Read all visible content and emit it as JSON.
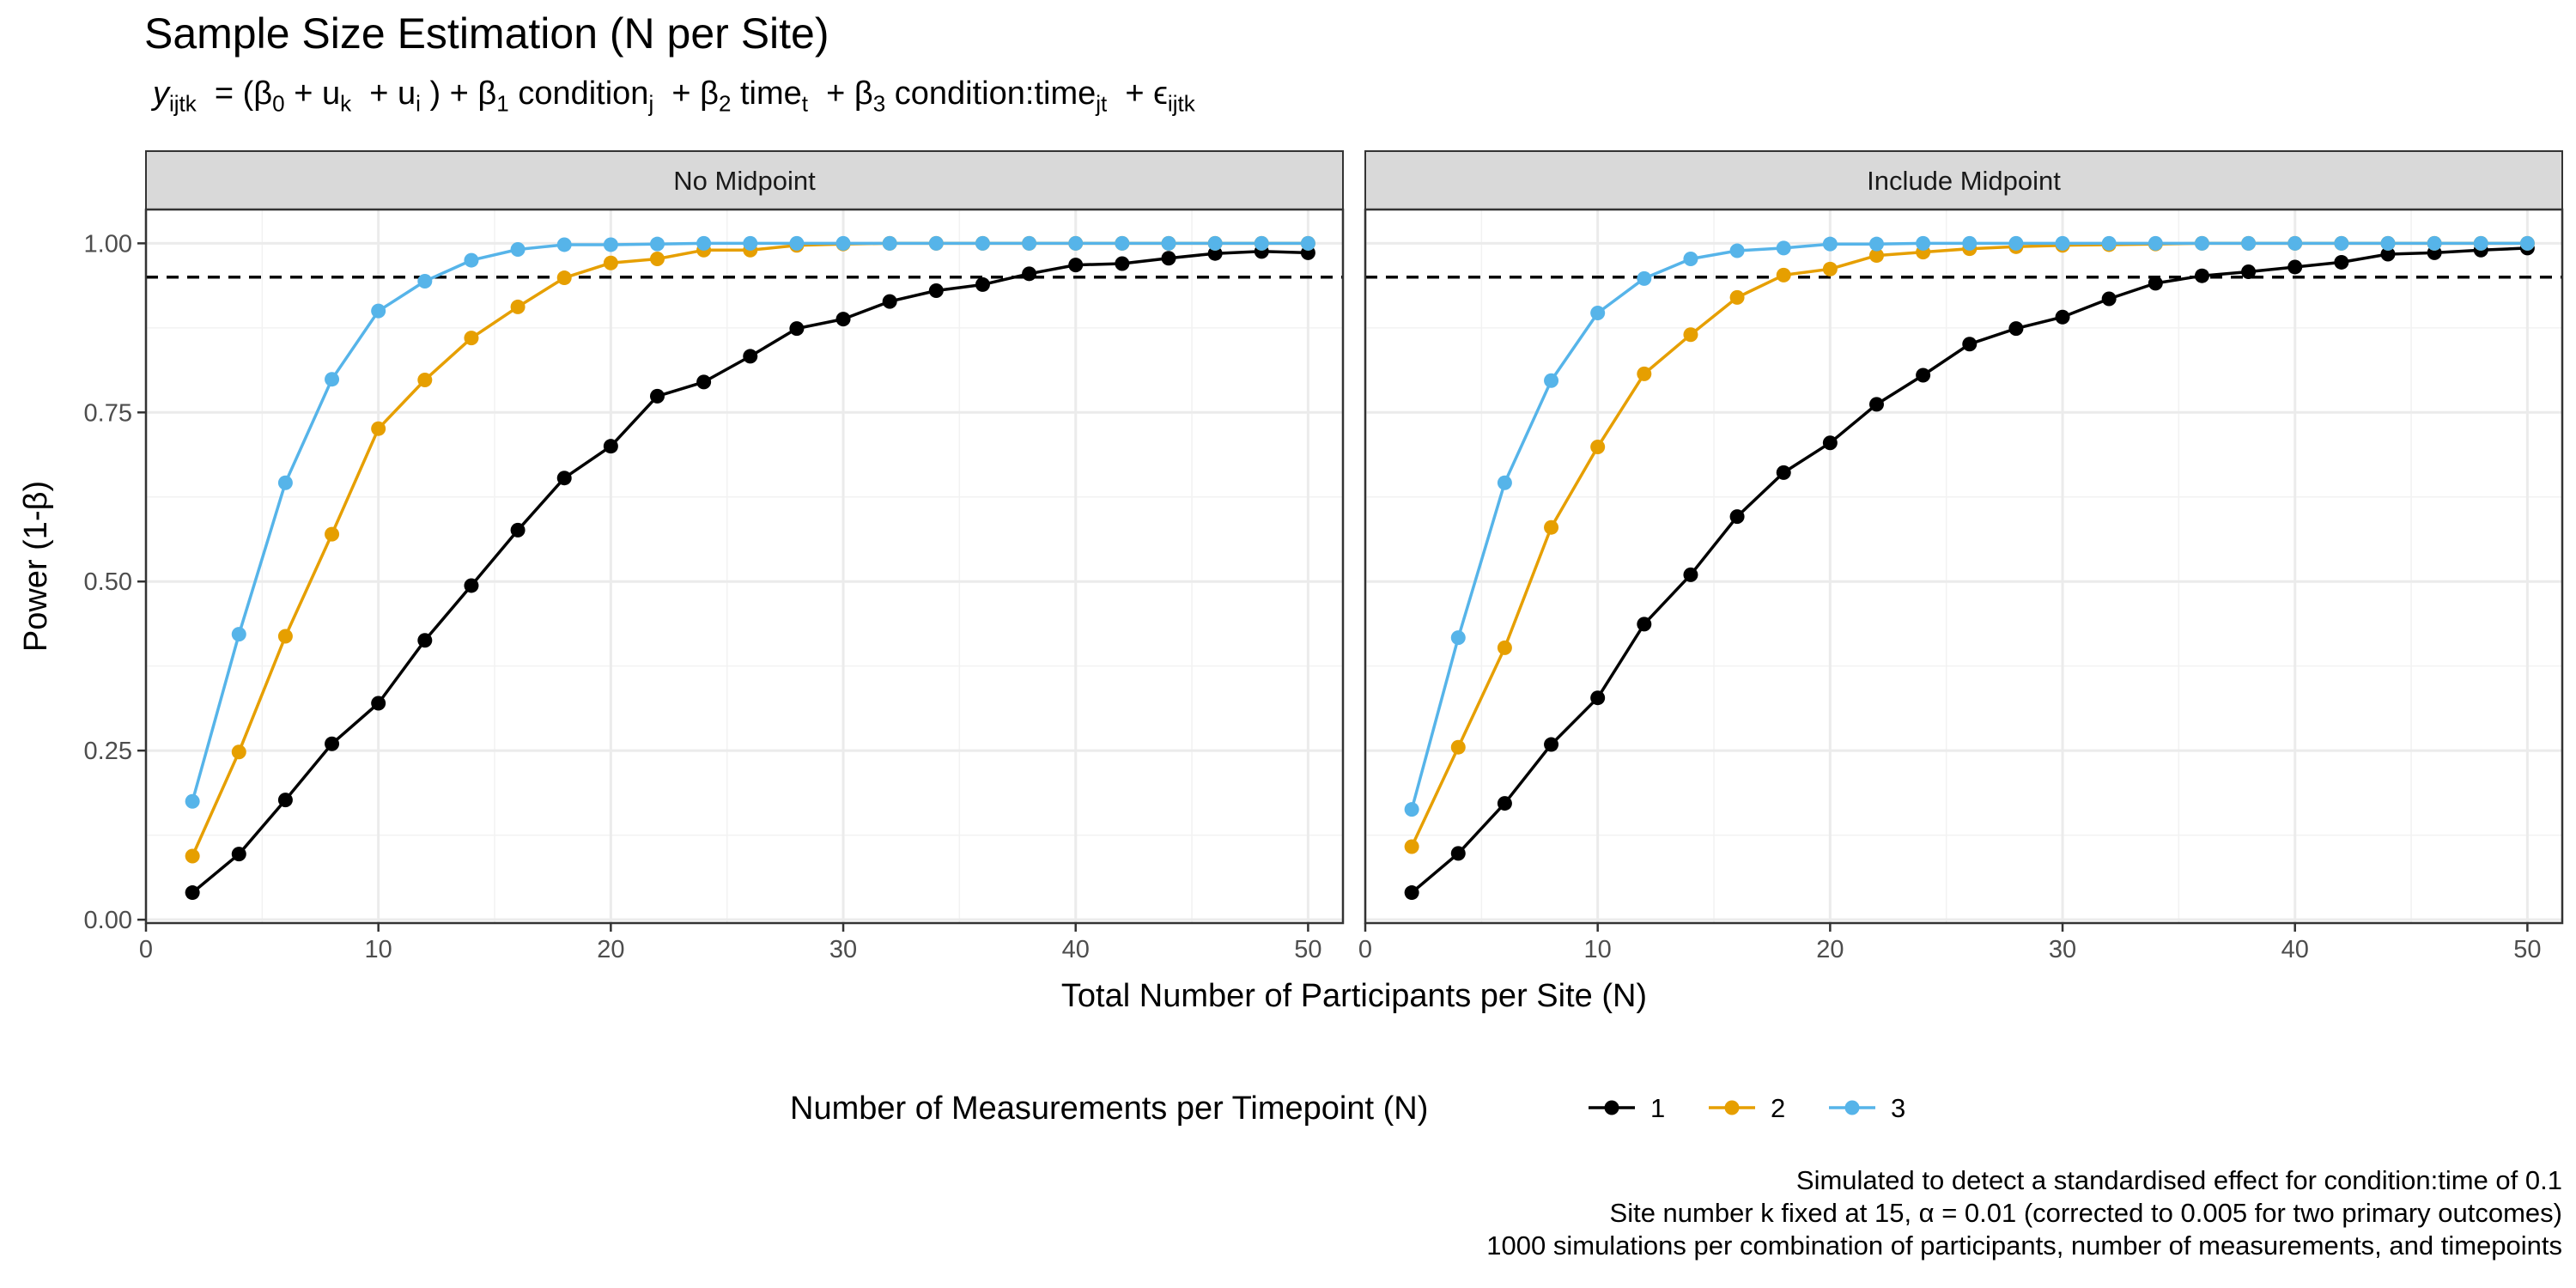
{
  "chart_data": {
    "type": "line",
    "title": "Sample Size Estimation (N per Site)",
    "subtitle": {
      "y": "y",
      "y_sub": "ijtk",
      "p1": "= (β",
      "b0_sub": "0",
      "p2": "+ u",
      "uk_sub": "k",
      "p3": "+ u",
      "ui_sub": "i",
      "p4": ") + β",
      "b1_sub": "1",
      "p5": "condition",
      "cond_sub": "j",
      "p6": "+ β",
      "b2_sub": "2",
      "p7": "time",
      "time_sub": "t",
      "p8": "+ β",
      "b3_sub": "3",
      "p9": "condition:time",
      "ct_sub": "jt",
      "p10": "+ ϵ",
      "eps_sub": "ijtk"
    },
    "xlabel": "Total Number of Participants per Site (N)",
    "ylabel": "Power (1-β)",
    "xlim": [
      0,
      51.5
    ],
    "ylim": [
      -0.005,
      1.05
    ],
    "x_ticks": [
      0,
      10,
      20,
      30,
      40,
      50
    ],
    "x_tick_labels": [
      "0",
      "10",
      "20",
      "30",
      "40",
      "50"
    ],
    "y_ticks": [
      0,
      0.25,
      0.5,
      0.75,
      1.0
    ],
    "y_tick_labels": [
      "0.00",
      "0.25",
      "0.50",
      "0.75",
      "1.00"
    ],
    "reference_line": 0.95,
    "grid": true,
    "legend_title": "Number of Measurements per Timepoint (N)",
    "legend_position": "bottom",
    "caption": [
      "Simulated to detect a standardised effect for condition:time of 0.1",
      "Site number k fixed at 15, α = 0.01 (corrected to 0.005 for two primary outcomes)",
      "1000 simulations per combination of participants, number of measurements, and timepoints"
    ],
    "x": [
      2,
      4,
      6,
      8,
      10,
      12,
      14,
      16,
      18,
      20,
      22,
      24,
      26,
      28,
      30,
      32,
      34,
      36,
      38,
      40,
      42,
      44,
      46,
      48,
      50
    ],
    "panels": [
      {
        "label": "No Midpoint",
        "series": [
          {
            "name": "1",
            "color": "#000000",
            "values": [
              0.04,
              0.097,
              0.177,
              0.26,
              0.32,
              0.413,
              0.494,
              0.576,
              0.653,
              0.7,
              0.774,
              0.795,
              0.833,
              0.874,
              0.888,
              0.914,
              0.93,
              0.939,
              0.955,
              0.968,
              0.97,
              0.978,
              0.985,
              0.988,
              0.986
            ]
          },
          {
            "name": "2",
            "color": "#E69F00",
            "values": [
              0.094,
              0.248,
              0.419,
              0.57,
              0.726,
              0.798,
              0.86,
              0.906,
              0.949,
              0.971,
              0.977,
              0.99,
              0.99,
              0.997,
              0.999,
              1.0,
              1.0,
              1.0,
              1.0,
              1.0,
              1.0,
              1.0,
              1.0,
              1.0,
              1.0
            ]
          },
          {
            "name": "3",
            "color": "#56B4E9",
            "values": [
              0.175,
              0.422,
              0.646,
              0.799,
              0.9,
              0.944,
              0.975,
              0.991,
              0.998,
              0.998,
              0.999,
              1.0,
              1.0,
              1.0,
              1.0,
              1.0,
              1.0,
              1.0,
              1.0,
              1.0,
              1.0,
              1.0,
              1.0,
              1.0,
              1.0
            ]
          }
        ]
      },
      {
        "label": "Include Midpoint",
        "series": [
          {
            "name": "1",
            "color": "#000000",
            "values": [
              0.04,
              0.098,
              0.172,
              0.259,
              0.328,
              0.437,
              0.51,
              0.596,
              0.661,
              0.705,
              0.762,
              0.805,
              0.851,
              0.874,
              0.891,
              0.918,
              0.941,
              0.952,
              0.958,
              0.965,
              0.972,
              0.984,
              0.986,
              0.99,
              0.993
            ]
          },
          {
            "name": "2",
            "color": "#E69F00",
            "values": [
              0.108,
              0.255,
              0.402,
              0.58,
              0.699,
              0.807,
              0.865,
              0.92,
              0.953,
              0.962,
              0.982,
              0.987,
              0.992,
              0.995,
              0.997,
              0.998,
              0.999,
              1.0,
              1.0,
              1.0,
              1.0,
              1.0,
              1.0,
              1.0,
              1.0
            ]
          },
          {
            "name": "3",
            "color": "#56B4E9",
            "values": [
              0.163,
              0.417,
              0.646,
              0.797,
              0.897,
              0.948,
              0.977,
              0.989,
              0.993,
              0.999,
              0.999,
              1.0,
              1.0,
              1.0,
              1.0,
              1.0,
              1.0,
              1.0,
              1.0,
              1.0,
              1.0,
              1.0,
              1.0,
              1.0,
              1.0
            ]
          }
        ]
      }
    ],
    "legend_items": [
      {
        "name": "1",
        "color": "#000000"
      },
      {
        "name": "2",
        "color": "#E69F00"
      },
      {
        "name": "3",
        "color": "#56B4E9"
      }
    ]
  }
}
